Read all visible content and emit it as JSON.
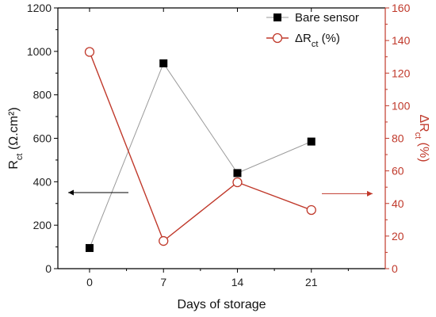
{
  "chart_data": {
    "type": "line",
    "x": [
      0,
      7,
      14,
      21
    ],
    "xlabel": "Days of storage",
    "xlim": [
      -3,
      28
    ],
    "xticks": [
      0,
      7,
      14,
      21
    ],
    "ylabel": {
      "main": "R",
      "sub": "ct",
      "rest": " (Ω.cm²)"
    },
    "ylim": [
      0,
      1200
    ],
    "yticks": [
      0,
      200,
      400,
      600,
      800,
      1000,
      1200
    ],
    "y2label": {
      "main": "ΔR",
      "sub": "ct",
      "rest": " (%)"
    },
    "y2lim": [
      0,
      160
    ],
    "y2ticks": [
      0,
      20,
      40,
      60,
      80,
      100,
      120,
      140,
      160
    ],
    "grid": false,
    "legend_position": "top-right",
    "series": [
      {
        "name": "Bare sensor",
        "axis": "left",
        "marker": "filled-square",
        "values": [
          95,
          945,
          440,
          585
        ],
        "line_color": "#9a9a9a",
        "marker_color": "#000000"
      },
      {
        "name_parts": {
          "main": "ΔR",
          "sub": "ct",
          "rest": " (%)"
        },
        "axis": "right",
        "marker": "open-circle",
        "values": [
          133,
          17,
          53,
          36
        ],
        "line_color": "#c0392b",
        "marker_color": "#c0392b"
      }
    ],
    "colors": {
      "left_axis": "#000000",
      "right_axis": "#c0392b"
    }
  }
}
